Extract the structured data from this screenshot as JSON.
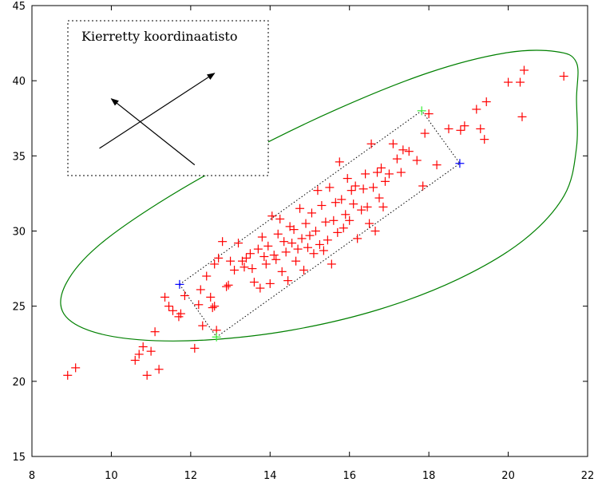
{
  "chart_data": {
    "type": "scatter",
    "title": "",
    "xlabel": "",
    "ylabel": "",
    "xlim": [
      8,
      22
    ],
    "ylim": [
      15,
      45
    ],
    "x_ticks": [
      8,
      10,
      12,
      14,
      16,
      18,
      20,
      22
    ],
    "y_ticks": [
      15,
      20,
      25,
      30,
      35,
      40,
      45
    ],
    "x_tick_labels": [
      "8",
      "10",
      "12",
      "14",
      "16",
      "18",
      "20",
      "22"
    ],
    "y_tick_labels": [
      "15",
      "20",
      "25",
      "30",
      "35",
      "40",
      "45"
    ],
    "grid": false,
    "legend": "none",
    "colors": {
      "points": "#ff0000",
      "ellipse": "#008000",
      "blue_markers": "#0000ff",
      "green_markers": "#33ee33",
      "box": "#000000"
    },
    "inset": {
      "title": "Kierretty koordinaatisto",
      "position": "top-left",
      "arrows": [
        {
          "from": [
            9.7,
            35.5
          ],
          "to": [
            12.6,
            40.5
          ]
        },
        {
          "from": [
            12.1,
            34.4
          ],
          "to": [
            10.0,
            38.8
          ]
        }
      ]
    },
    "ellipse": {
      "center": [
        15.3,
        30.35
      ],
      "points": [
        [
          21.72,
          41.2
        ],
        [
          21.2,
          41.94
        ],
        [
          19.91,
          41.84
        ],
        [
          18.0,
          40.54
        ],
        [
          15.7,
          38.12
        ],
        [
          13.3,
          35.04
        ],
        [
          11.21,
          31.89
        ],
        [
          9.65,
          28.97
        ],
        [
          8.87,
          26.56
        ],
        [
          8.77,
          24.66
        ],
        [
          9.41,
          23.41
        ],
        [
          10.69,
          22.77
        ],
        [
          12.45,
          22.76
        ],
        [
          14.55,
          23.41
        ],
        [
          16.73,
          24.77
        ],
        [
          18.74,
          26.8
        ],
        [
          20.38,
          29.38
        ],
        [
          21.41,
          32.37
        ],
        [
          21.72,
          35.56
        ],
        [
          21.72,
          38.8
        ]
      ]
    },
    "rotated_box": [
      [
        11.72,
        26.45
      ],
      [
        17.82,
        38.0
      ],
      [
        18.78,
        34.5
      ],
      [
        12.65,
        22.95
      ]
    ],
    "blue_points": [
      [
        11.72,
        26.45
      ],
      [
        18.78,
        34.5
      ]
    ],
    "green_points": [
      [
        17.82,
        38.0
      ],
      [
        12.65,
        22.95
      ]
    ],
    "points": [
      [
        8.9,
        20.4
      ],
      [
        9.1,
        20.9
      ],
      [
        10.6,
        21.4
      ],
      [
        10.7,
        21.8
      ],
      [
        10.8,
        22.3
      ],
      [
        10.9,
        20.4
      ],
      [
        11.0,
        22.0
      ],
      [
        11.1,
        23.3
      ],
      [
        11.2,
        20.8
      ],
      [
        11.35,
        25.6
      ],
      [
        11.45,
        25.0
      ],
      [
        11.55,
        24.7
      ],
      [
        11.7,
        24.3
      ],
      [
        11.75,
        24.5
      ],
      [
        11.85,
        25.7
      ],
      [
        12.1,
        22.2
      ],
      [
        12.2,
        25.1
      ],
      [
        12.25,
        26.1
      ],
      [
        12.3,
        23.7
      ],
      [
        12.4,
        27.0
      ],
      [
        12.5,
        25.6
      ],
      [
        12.55,
        24.9
      ],
      [
        12.6,
        25.0
      ],
      [
        12.65,
        23.4
      ],
      [
        12.6,
        27.8
      ],
      [
        12.7,
        28.2
      ],
      [
        12.8,
        29.3
      ],
      [
        12.9,
        26.3
      ],
      [
        12.95,
        26.4
      ],
      [
        13.0,
        28.0
      ],
      [
        13.1,
        27.4
      ],
      [
        13.2,
        29.2
      ],
      [
        13.3,
        28.0
      ],
      [
        13.35,
        27.6
      ],
      [
        13.4,
        28.2
      ],
      [
        13.5,
        28.5
      ],
      [
        13.55,
        27.5
      ],
      [
        13.6,
        26.6
      ],
      [
        13.7,
        28.8
      ],
      [
        13.75,
        26.2
      ],
      [
        13.8,
        29.6
      ],
      [
        13.85,
        28.3
      ],
      [
        13.9,
        27.8
      ],
      [
        13.95,
        29.0
      ],
      [
        14.0,
        26.5
      ],
      [
        14.05,
        31.0
      ],
      [
        14.1,
        28.4
      ],
      [
        14.15,
        28.1
      ],
      [
        14.2,
        29.8
      ],
      [
        14.25,
        30.8
      ],
      [
        14.3,
        27.3
      ],
      [
        14.35,
        29.3
      ],
      [
        14.4,
        28.6
      ],
      [
        14.45,
        26.7
      ],
      [
        14.5,
        30.3
      ],
      [
        14.55,
        29.2
      ],
      [
        14.6,
        30.1
      ],
      [
        14.65,
        28.0
      ],
      [
        14.7,
        28.8
      ],
      [
        14.75,
        31.5
      ],
      [
        14.8,
        29.5
      ],
      [
        14.85,
        27.4
      ],
      [
        14.9,
        30.5
      ],
      [
        14.95,
        28.9
      ],
      [
        15.0,
        29.7
      ],
      [
        15.05,
        31.2
      ],
      [
        15.1,
        28.5
      ],
      [
        15.15,
        30.0
      ],
      [
        15.2,
        32.7
      ],
      [
        15.25,
        29.1
      ],
      [
        15.3,
        31.7
      ],
      [
        15.35,
        28.7
      ],
      [
        15.4,
        30.6
      ],
      [
        15.45,
        29.4
      ],
      [
        15.5,
        32.9
      ],
      [
        15.55,
        27.8
      ],
      [
        15.6,
        30.7
      ],
      [
        15.65,
        31.9
      ],
      [
        15.7,
        29.9
      ],
      [
        15.75,
        34.6
      ],
      [
        15.8,
        32.1
      ],
      [
        15.85,
        30.2
      ],
      [
        15.9,
        31.1
      ],
      [
        15.95,
        33.5
      ],
      [
        16.0,
        30.7
      ],
      [
        16.05,
        32.7
      ],
      [
        16.1,
        31.8
      ],
      [
        16.15,
        33.0
      ],
      [
        16.2,
        29.5
      ],
      [
        16.3,
        31.4
      ],
      [
        16.35,
        32.8
      ],
      [
        16.4,
        33.8
      ],
      [
        16.45,
        31.6
      ],
      [
        16.5,
        30.5
      ],
      [
        16.55,
        35.8
      ],
      [
        16.6,
        32.9
      ],
      [
        16.65,
        30.0
      ],
      [
        16.7,
        33.9
      ],
      [
        16.75,
        32.2
      ],
      [
        16.8,
        34.2
      ],
      [
        16.85,
        31.6
      ],
      [
        16.9,
        33.3
      ],
      [
        17.0,
        33.8
      ],
      [
        17.1,
        35.8
      ],
      [
        17.2,
        34.8
      ],
      [
        17.3,
        33.9
      ],
      [
        17.35,
        35.4
      ],
      [
        17.5,
        35.3
      ],
      [
        17.7,
        34.7
      ],
      [
        17.85,
        33.0
      ],
      [
        17.9,
        36.5
      ],
      [
        18.0,
        37.8
      ],
      [
        18.2,
        34.4
      ],
      [
        18.5,
        36.8
      ],
      [
        18.8,
        36.7
      ],
      [
        18.9,
        37.0
      ],
      [
        19.2,
        38.1
      ],
      [
        19.3,
        36.8
      ],
      [
        19.45,
        38.6
      ],
      [
        19.4,
        36.1
      ],
      [
        20.0,
        39.9
      ],
      [
        20.3,
        39.9
      ],
      [
        20.35,
        37.6
      ],
      [
        20.4,
        40.7
      ],
      [
        21.4,
        40.3
      ]
    ]
  }
}
